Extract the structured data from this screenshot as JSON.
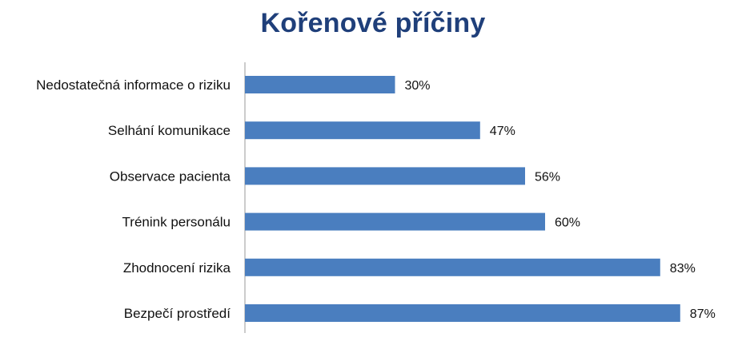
{
  "chart_data": {
    "type": "bar",
    "orientation": "horizontal",
    "title": "Kořenové příčiny",
    "categories": [
      "Nedostatečná informace o riziku",
      "Selhání komunikace",
      "Observace pacienta",
      "Trénink personálu",
      "Zhodnocení rizika",
      "Bezpečí prostředí"
    ],
    "values": [
      30,
      47,
      56,
      60,
      83,
      87
    ],
    "value_suffix": "%",
    "xlim": [
      0,
      100
    ],
    "grid": false,
    "legend": "none",
    "bar_color": "#4a7ebf",
    "axis_color": "#999999"
  }
}
